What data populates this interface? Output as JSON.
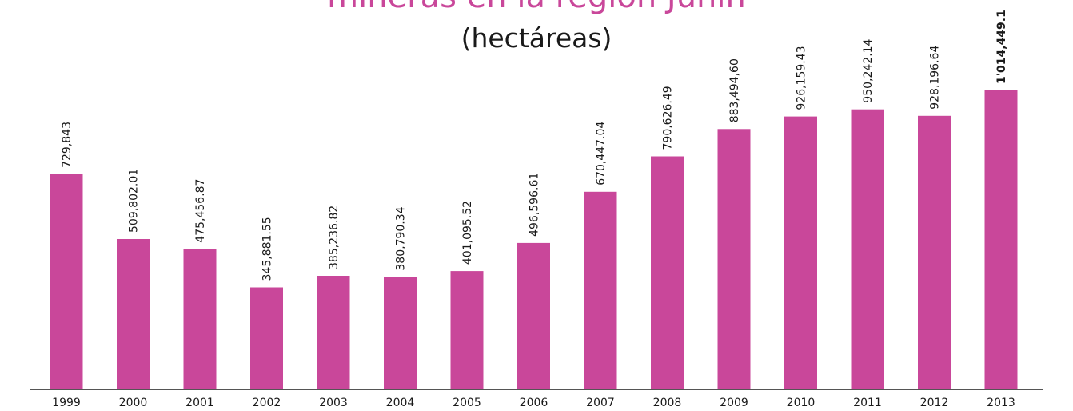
{
  "title": {
    "line1": "mineras en la región Junín",
    "line2": "(hectáreas)"
  },
  "colors": {
    "bar": "#c9479a",
    "axis": "#555555",
    "label": "#1a1a1a"
  },
  "chart_data": {
    "type": "bar",
    "title": "mineras en la región Junín (hectáreas)",
    "xlabel": "",
    "ylabel": "",
    "ylim": [
      0,
      1100000
    ],
    "grid": false,
    "legend": "none",
    "categories": [
      "1999",
      "2000",
      "2001",
      "2002",
      "2003",
      "2004",
      "2005",
      "2006",
      "2007",
      "2008",
      "2009",
      "2010",
      "2011",
      "2012",
      "2013"
    ],
    "values": [
      729843,
      509802.01,
      475456.87,
      345881.55,
      385236.82,
      380790.34,
      401095.52,
      496596.61,
      670447.04,
      790626.49,
      883494.6,
      926159.43,
      950242.14,
      928196.64,
      1014449.1
    ],
    "data_labels": [
      "729,843",
      "509,802.01",
      "475,456.87",
      "345,881.55",
      "385,236.82",
      "380,790.34",
      "401,095.52",
      "496,596.61",
      "670,447.04",
      "790,626.49",
      "883,494,60",
      "926,159.43",
      "950,242.14",
      "928,196.64",
      "1'014,449.1"
    ],
    "emphasized_label_index": 14
  }
}
